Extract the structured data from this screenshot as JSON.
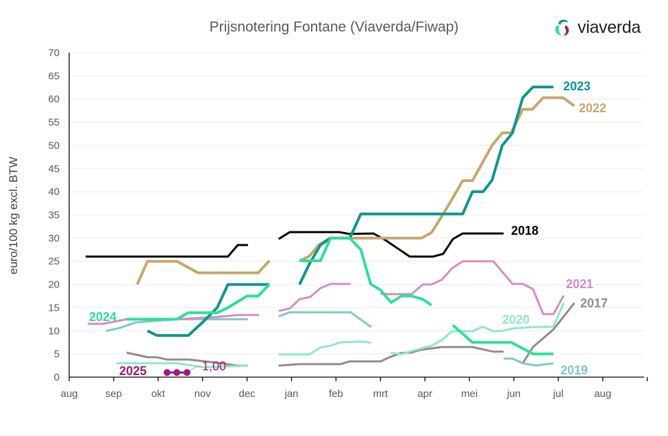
{
  "header": {
    "title": "Prijsnotering Fontane (Viaverda/Fiwap)",
    "logo_text": "viaverda"
  },
  "colors": {
    "2017": "#948b86",
    "2018": "#000000",
    "2019": "#7cc9c9",
    "2020": "#8ee8c9",
    "2021": "#d58bc4",
    "2022": "#c9a66b",
    "2023": "#0e9590",
    "2024": "#2ddf9b",
    "2025": "#a3177e"
  },
  "chart_data": {
    "type": "line",
    "title": "Prijsnotering Fontane (Viaverda/Fiwap)",
    "xlabel": "",
    "ylabel": "euro/100 kg excl. BTW",
    "x_unit": "months since start of August (aug=0)",
    "xlim": [
      0,
      13
    ],
    "ylim": [
      0,
      70
    ],
    "yticks": [
      0,
      5,
      10,
      15,
      20,
      25,
      30,
      35,
      40,
      45,
      50,
      55,
      60,
      65,
      70
    ],
    "ytick_labels": [
      "0",
      "5",
      "10",
      "15",
      "20",
      "25",
      "30",
      "35",
      "40",
      "45",
      "50",
      "55",
      "60",
      "65",
      "70"
    ],
    "xtick_labels": [
      "aug",
      "sep",
      "okt",
      "nov",
      "dec",
      "jan",
      "feb",
      "mrt",
      "apr",
      "mei",
      "jun",
      "jul",
      "aug"
    ],
    "grid": true,
    "legend": "inline labels",
    "annotations": [
      {
        "series": "2025",
        "text": "1,00"
      }
    ],
    "series": [
      {
        "name": "2017",
        "label": "2017",
        "segments": [
          [
            [
              1.29,
              5.3
            ],
            [
              1.76,
              4.3
            ],
            [
              1.97,
              4.3
            ],
            [
              2.2,
              3.8
            ],
            [
              2.68,
              3.8
            ],
            [
              3.33,
              3.1
            ],
            [
              3.78,
              2.5
            ],
            [
              4.02,
              2.5
            ]
          ],
          [
            [
              4.71,
              2.5
            ],
            [
              5.18,
              2.8
            ],
            [
              6.1,
              2.8
            ],
            [
              6.31,
              3.4
            ],
            [
              7.0,
              3.4
            ],
            [
              7.23,
              4.4
            ],
            [
              7.46,
              5.2
            ],
            [
              7.69,
              5.3
            ],
            [
              7.92,
              5.9
            ],
            [
              8.38,
              6.5
            ],
            [
              9.07,
              6.5
            ],
            [
              9.54,
              5.5
            ],
            [
              9.77,
              5.5
            ]
          ],
          [
            [
              10.2,
              3.0
            ],
            [
              10.43,
              6.5
            ],
            [
              10.89,
              10.3
            ],
            [
              11.36,
              16.0
            ]
          ]
        ]
      },
      {
        "name": "2018",
        "label": "2018",
        "segments": [
          [
            [
              0.37,
              26
            ],
            [
              3.57,
              26
            ],
            [
              3.79,
              28.5
            ],
            [
              4.02,
              28.5
            ]
          ],
          [
            [
              4.71,
              29.8
            ],
            [
              4.96,
              31.3
            ],
            [
              6.07,
              31.3
            ],
            [
              6.3,
              30.9
            ],
            [
              6.84,
              31
            ],
            [
              7.09,
              29.7
            ],
            [
              7.66,
              26
            ],
            [
              8.18,
              26
            ],
            [
              8.41,
              26.6
            ],
            [
              8.63,
              29.8
            ],
            [
              8.85,
              31
            ],
            [
              9.77,
              31
            ]
          ]
        ]
      },
      {
        "name": "2019",
        "label": "2019",
        "segments": [
          [
            [
              0.83,
              10
            ],
            [
              1.14,
              10.6
            ],
            [
              1.49,
              11.8
            ],
            [
              2.42,
              12.5
            ],
            [
              4.02,
              12.5
            ]
          ],
          [
            [
              4.71,
              13.1
            ],
            [
              4.96,
              14
            ],
            [
              6.33,
              14
            ],
            [
              6.79,
              10.8
            ]
          ],
          [
            [
              9.77,
              4
            ],
            [
              9.97,
              4
            ],
            [
              10.2,
              3
            ],
            [
              10.5,
              2.5
            ],
            [
              10.89,
              3
            ]
          ]
        ]
      },
      {
        "name": "2020",
        "label": "2020",
        "segments": [
          [
            [
              1.06,
              3
            ],
            [
              2.42,
              3
            ],
            [
              3.02,
              2.1
            ],
            [
              4.02,
              2.5
            ]
          ],
          [
            [
              4.71,
              4.9
            ],
            [
              5.4,
              4.9
            ],
            [
              5.65,
              6.4
            ],
            [
              5.88,
              6.8
            ],
            [
              6.1,
              7.5
            ],
            [
              6.6,
              7.7
            ],
            [
              6.79,
              7.4
            ]
          ],
          [
            [
              7.23,
              5.3
            ],
            [
              7.46,
              4.9
            ],
            [
              7.69,
              5.6
            ],
            [
              8.15,
              6.8
            ],
            [
              8.38,
              8
            ],
            [
              8.61,
              9.9
            ],
            [
              9.07,
              9.9
            ],
            [
              9.3,
              10.9
            ],
            [
              9.54,
              9.9
            ],
            [
              9.77,
              10
            ],
            [
              9.97,
              10.5
            ],
            [
              10.43,
              10.8
            ],
            [
              10.89,
              10.9
            ],
            [
              11.12,
              16
            ]
          ]
        ]
      },
      {
        "name": "2021",
        "label": "2021",
        "segments": [
          [
            [
              0.42,
              11.5
            ],
            [
              0.76,
              11.5
            ],
            [
              1.29,
              12.5
            ],
            [
              2.42,
              12.5
            ],
            [
              3.33,
              13
            ],
            [
              3.78,
              13.4
            ],
            [
              4.27,
              13.4
            ]
          ],
          [
            [
              4.71,
              14.3
            ],
            [
              4.96,
              14.8
            ],
            [
              5.18,
              16.8
            ],
            [
              5.42,
              17.3
            ],
            [
              5.65,
              19.2
            ],
            [
              5.88,
              20.1
            ],
            [
              6.33,
              20.1
            ]
          ],
          [
            [
              7.0,
              17.9
            ],
            [
              7.7,
              17.9
            ],
            [
              7.95,
              20
            ],
            [
              8.15,
              20
            ],
            [
              8.38,
              21
            ],
            [
              8.61,
              23.5
            ],
            [
              8.85,
              25
            ],
            [
              9.54,
              25
            ],
            [
              9.97,
              20.1
            ],
            [
              10.2,
              20.1
            ],
            [
              10.43,
              19
            ],
            [
              10.66,
              13.6
            ],
            [
              10.89,
              13.6
            ],
            [
              11.12,
              17.6
            ]
          ]
        ]
      },
      {
        "name": "2022",
        "label": "2022",
        "segments": [
          [
            [
              1.53,
              20
            ],
            [
              1.76,
              25
            ],
            [
              2.42,
              25
            ],
            [
              2.9,
              22.5
            ],
            [
              4.25,
              22.5
            ],
            [
              4.5,
              25.1
            ]
          ],
          [
            [
              5.18,
              25.1
            ],
            [
              5.4,
              26.1
            ],
            [
              5.61,
              28.5
            ],
            [
              5.86,
              30
            ],
            [
              7.92,
              30
            ],
            [
              8.15,
              31.2
            ],
            [
              8.38,
              34.7
            ],
            [
              8.61,
              38.4
            ],
            [
              8.85,
              42.4
            ],
            [
              9.07,
              42.4
            ],
            [
              9.51,
              50
            ],
            [
              9.74,
              52.7
            ],
            [
              9.94,
              52.7
            ],
            [
              10.2,
              57.8
            ],
            [
              10.42,
              57.8
            ],
            [
              10.66,
              60.3
            ],
            [
              11.11,
              60.3
            ],
            [
              11.36,
              58.5
            ]
          ]
        ]
      },
      {
        "name": "2023",
        "label": "2023",
        "segments": [
          [
            [
              1.76,
              10
            ],
            [
              1.97,
              9
            ],
            [
              2.68,
              9
            ],
            [
              3.02,
              12
            ],
            [
              3.33,
              15
            ],
            [
              3.57,
              20
            ],
            [
              4.5,
              20
            ]
          ],
          [
            [
              5.18,
              20
            ],
            [
              5.4,
              24.4
            ],
            [
              5.65,
              28.5
            ],
            [
              5.88,
              30
            ],
            [
              6.31,
              30
            ],
            [
              6.56,
              35.2
            ],
            [
              8.85,
              35.2
            ],
            [
              9.07,
              40
            ],
            [
              9.31,
              40
            ],
            [
              9.51,
              42.5
            ],
            [
              9.74,
              50
            ],
            [
              9.97,
              52.7
            ],
            [
              10.2,
              60.3
            ],
            [
              10.43,
              62.6
            ],
            [
              10.89,
              62.6
            ]
          ]
        ]
      },
      {
        "name": "2024",
        "label": "2024",
        "segments": [
          [
            [
              1.29,
              12.5
            ],
            [
              2.42,
              12.5
            ],
            [
              2.68,
              13.9
            ],
            [
              3.33,
              13.9
            ],
            [
              3.57,
              15
            ],
            [
              4.0,
              17.5
            ],
            [
              4.25,
              17.5
            ],
            [
              4.5,
              20
            ]
          ],
          [
            [
              5.18,
              25.1
            ],
            [
              5.65,
              25.1
            ],
            [
              5.88,
              30
            ],
            [
              6.31,
              30
            ],
            [
              6.56,
              27.5
            ],
            [
              6.78,
              20.1
            ],
            [
              7.0,
              18.8
            ],
            [
              7.24,
              16.1
            ],
            [
              7.47,
              17.5
            ],
            [
              7.7,
              17.5
            ],
            [
              7.95,
              16.8
            ],
            [
              8.15,
              15.5
            ]
          ],
          [
            [
              8.63,
              11.2
            ],
            [
              9.07,
              7.5
            ],
            [
              9.94,
              7.5
            ],
            [
              10.43,
              5
            ],
            [
              10.89,
              5
            ]
          ]
        ]
      },
      {
        "name": "2025",
        "label": "2025",
        "markers": true,
        "segments": [
          [
            [
              2.2,
              1
            ],
            [
              2.42,
              1
            ],
            [
              2.65,
              1
            ]
          ]
        ]
      }
    ]
  }
}
